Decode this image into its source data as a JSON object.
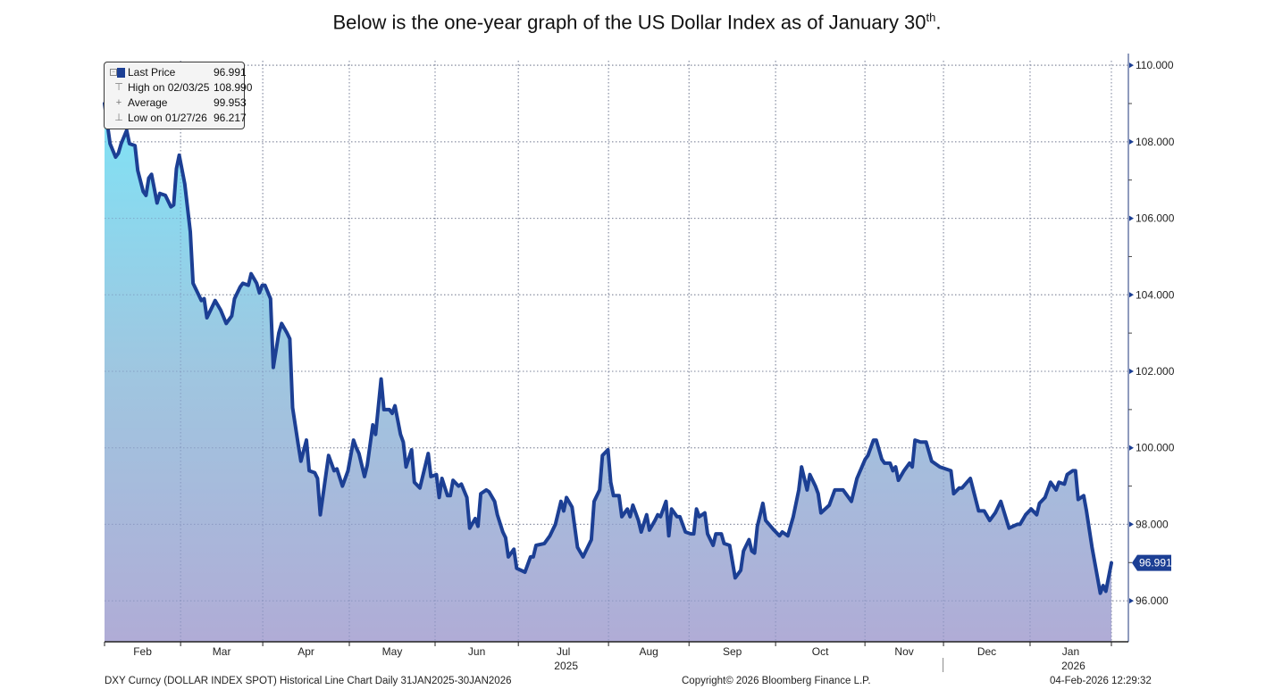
{
  "header": {
    "title": "Below is the one-year graph of the US Dollar Index as of January 30",
    "title_sup": "th",
    "title_end": "."
  },
  "legend": {
    "rows": [
      {
        "icon": "square-swatch-icon",
        "label": "Last Price",
        "value": "96.991"
      },
      {
        "icon": "high-marker-icon",
        "label": "High on 02/03/25",
        "value": "108.990"
      },
      {
        "icon": "average-marker-icon",
        "label": "Average",
        "value": "99.953"
      },
      {
        "icon": "low-marker-icon",
        "label": "Low on 01/27/26",
        "value": "96.217"
      }
    ]
  },
  "footer": {
    "left": "DXY Curncy (DOLLAR INDEX SPOT) Historical Line Chart Daily 31JAN2025-30JAN2026",
    "center": "Copyright© 2026 Bloomberg Finance L.P.",
    "right": "04-Feb-2026 12:29:32"
  },
  "colors": {
    "line": "#1c3f94",
    "fill_top": "#7fe3f6",
    "fill_mid": "#9fc6e0",
    "fill_bottom": "#b0acd6",
    "grid": "#8a8a8a",
    "axis": "#8f9bbd",
    "last_tag": "#1c3f94"
  },
  "chart_data": {
    "type": "area",
    "title": "DXY Curncy (DOLLAR INDEX SPOT) Historical Line Chart Daily 31JAN2025-30JAN2026",
    "series_name": "Last Price",
    "x_origin": "2025-01-31",
    "x_unit": "days since x_origin",
    "xlim": [
      0,
      370
    ],
    "ylim": [
      94.93,
      110.12
    ],
    "y_ticks": [
      "96.000",
      "98.000",
      "100.000",
      "102.000",
      "104.000",
      "106.000",
      "108.000",
      "110.000"
    ],
    "y_tick_values": [
      96,
      98,
      100,
      102,
      104,
      106,
      108,
      110
    ],
    "y_axis_side": "right",
    "x_month_labels": [
      {
        "label": "Feb",
        "sub": ""
      },
      {
        "label": "Mar",
        "sub": ""
      },
      {
        "label": "Apr",
        "sub": ""
      },
      {
        "label": "May",
        "sub": ""
      },
      {
        "label": "Jun",
        "sub": ""
      },
      {
        "label": "Jul",
        "sub": "2025"
      },
      {
        "label": "Aug",
        "sub": ""
      },
      {
        "label": "Sep",
        "sub": ""
      },
      {
        "label": "Oct",
        "sub": ""
      },
      {
        "label": "Nov",
        "sub": ""
      },
      {
        "label": "Dec",
        "sub": ""
      },
      {
        "label": "Jan",
        "sub": "2026"
      }
    ],
    "grid": true,
    "legend_position": "top-left",
    "last_value": 96.991,
    "last_value_label": "96.991",
    "high": {
      "date": "02/03/25",
      "value": 108.99
    },
    "low": {
      "date": "01/27/26",
      "value": 96.217
    },
    "average": 99.953,
    "points": [
      [
        0,
        109.0
      ],
      [
        2,
        107.95
      ],
      [
        4,
        107.6
      ],
      [
        5,
        107.7
      ],
      [
        6,
        107.95
      ],
      [
        8,
        108.3
      ],
      [
        9,
        107.95
      ],
      [
        11,
        107.9
      ],
      [
        12,
        107.25
      ],
      [
        14,
        106.7
      ],
      [
        15,
        106.6
      ],
      [
        16,
        107.05
      ],
      [
        17,
        107.15
      ],
      [
        19,
        106.4
      ],
      [
        20,
        106.65
      ],
      [
        22,
        106.6
      ],
      [
        24,
        106.3
      ],
      [
        25,
        106.35
      ],
      [
        26,
        107.3
      ],
      [
        27,
        107.65
      ],
      [
        29,
        106.9
      ],
      [
        31,
        105.65
      ],
      [
        32,
        104.3
      ],
      [
        34,
        104.0
      ],
      [
        35,
        103.85
      ],
      [
        36,
        103.9
      ],
      [
        37,
        103.4
      ],
      [
        39,
        103.7
      ],
      [
        40,
        103.85
      ],
      [
        42,
        103.6
      ],
      [
        44,
        103.25
      ],
      [
        46,
        103.45
      ],
      [
        47,
        103.9
      ],
      [
        49,
        104.2
      ],
      [
        50,
        104.3
      ],
      [
        52,
        104.25
      ],
      [
        53,
        104.55
      ],
      [
        55,
        104.3
      ],
      [
        56,
        104.05
      ],
      [
        57,
        104.25
      ],
      [
        58,
        104.25
      ],
      [
        60,
        103.9
      ],
      [
        61,
        102.1
      ],
      [
        63,
        103.0
      ],
      [
        64,
        103.25
      ],
      [
        66,
        103.0
      ],
      [
        67,
        102.85
      ],
      [
        68,
        101.05
      ],
      [
        70,
        100.1
      ],
      [
        71,
        99.65
      ],
      [
        73,
        100.2
      ],
      [
        74,
        99.4
      ],
      [
        76,
        99.35
      ],
      [
        77,
        99.2
      ],
      [
        78,
        98.25
      ],
      [
        81,
        99.8
      ],
      [
        83,
        99.4
      ],
      [
        84,
        99.45
      ],
      [
        86,
        99.0
      ],
      [
        88,
        99.4
      ],
      [
        90,
        100.2
      ],
      [
        91,
        100.0
      ],
      [
        92,
        99.85
      ],
      [
        94,
        99.25
      ],
      [
        95,
        99.55
      ],
      [
        97,
        100.6
      ],
      [
        98,
        100.35
      ],
      [
        100,
        101.8
      ],
      [
        101,
        101.0
      ],
      [
        103,
        101.0
      ],
      [
        104,
        100.9
      ],
      [
        105,
        101.1
      ],
      [
        107,
        100.35
      ],
      [
        108,
        100.15
      ],
      [
        109,
        99.5
      ],
      [
        111,
        99.95
      ],
      [
        112,
        99.1
      ],
      [
        114,
        98.95
      ],
      [
        117,
        99.85
      ],
      [
        118,
        99.25
      ],
      [
        120,
        99.3
      ],
      [
        121,
        98.7
      ],
      [
        122,
        99.2
      ],
      [
        124,
        98.75
      ],
      [
        125,
        98.75
      ],
      [
        126,
        99.15
      ],
      [
        128,
        99.0
      ],
      [
        129,
        99.05
      ],
      [
        131,
        98.7
      ],
      [
        132,
        97.9
      ],
      [
        134,
        98.15
      ],
      [
        135,
        97.95
      ],
      [
        136,
        98.8
      ],
      [
        138,
        98.9
      ],
      [
        139,
        98.85
      ],
      [
        141,
        98.6
      ],
      [
        142,
        98.25
      ],
      [
        144,
        97.8
      ],
      [
        145,
        97.65
      ],
      [
        146,
        97.15
      ],
      [
        148,
        97.35
      ],
      [
        149,
        96.85
      ],
      [
        152,
        96.75
      ],
      [
        154,
        97.15
      ],
      [
        155,
        97.15
      ],
      [
        156,
        97.45
      ],
      [
        159,
        97.5
      ],
      [
        161,
        97.7
      ],
      [
        163,
        98.0
      ],
      [
        165,
        98.6
      ],
      [
        166,
        98.35
      ],
      [
        167,
        98.7
      ],
      [
        169,
        98.45
      ],
      [
        171,
        97.4
      ],
      [
        173,
        97.15
      ],
      [
        176,
        97.6
      ],
      [
        177,
        98.6
      ],
      [
        179,
        98.9
      ],
      [
        180,
        99.8
      ],
      [
        182,
        99.95
      ],
      [
        183,
        99.1
      ],
      [
        184,
        98.75
      ],
      [
        186,
        98.75
      ],
      [
        187,
        98.2
      ],
      [
        189,
        98.4
      ],
      [
        190,
        98.2
      ],
      [
        191,
        98.5
      ],
      [
        193,
        98.1
      ],
      [
        194,
        97.8
      ],
      [
        196,
        98.25
      ],
      [
        197,
        97.85
      ],
      [
        199,
        98.1
      ],
      [
        200,
        98.25
      ],
      [
        201,
        98.2
      ],
      [
        203,
        98.6
      ],
      [
        204,
        97.7
      ],
      [
        205,
        98.4
      ],
      [
        207,
        98.2
      ],
      [
        208,
        98.2
      ],
      [
        210,
        97.8
      ],
      [
        212,
        97.75
      ],
      [
        213,
        97.75
      ],
      [
        214,
        98.4
      ],
      [
        215,
        98.2
      ],
      [
        217,
        98.3
      ],
      [
        218,
        97.75
      ],
      [
        220,
        97.45
      ],
      [
        221,
        97.75
      ],
      [
        223,
        97.75
      ],
      [
        224,
        97.5
      ],
      [
        226,
        97.45
      ],
      [
        228,
        96.6
      ],
      [
        230,
        96.8
      ],
      [
        231,
        97.3
      ],
      [
        233,
        97.6
      ],
      [
        234,
        97.3
      ],
      [
        235,
        97.25
      ],
      [
        236,
        97.95
      ],
      [
        238,
        98.55
      ],
      [
        239,
        98.1
      ],
      [
        242,
        97.85
      ],
      [
        244,
        97.7
      ],
      [
        245,
        97.8
      ],
      [
        247,
        97.7
      ],
      [
        249,
        98.2
      ],
      [
        251,
        98.9
      ],
      [
        252,
        99.5
      ],
      [
        254,
        98.9
      ],
      [
        255,
        99.3
      ],
      [
        257,
        99.0
      ],
      [
        258,
        98.8
      ],
      [
        259,
        98.3
      ],
      [
        262,
        98.5
      ],
      [
        264,
        98.9
      ],
      [
        265,
        98.9
      ],
      [
        267,
        98.9
      ],
      [
        270,
        98.6
      ],
      [
        272,
        99.2
      ],
      [
        275,
        99.7
      ],
      [
        276,
        99.8
      ],
      [
        278,
        100.2
      ],
      [
        279,
        100.2
      ],
      [
        281,
        99.7
      ],
      [
        282,
        99.6
      ],
      [
        284,
        99.6
      ],
      [
        285,
        99.4
      ],
      [
        286,
        99.5
      ],
      [
        287,
        99.15
      ],
      [
        289,
        99.4
      ],
      [
        291,
        99.6
      ],
      [
        292,
        99.5
      ],
      [
        293,
        100.2
      ],
      [
        295,
        100.15
      ],
      [
        297,
        100.15
      ],
      [
        299,
        99.65
      ],
      [
        302,
        99.5
      ],
      [
        306,
        99.4
      ],
      [
        307,
        98.8
      ],
      [
        309,
        98.95
      ],
      [
        310,
        98.95
      ],
      [
        313,
        99.2
      ],
      [
        316,
        98.35
      ],
      [
        318,
        98.35
      ],
      [
        320,
        98.1
      ],
      [
        322,
        98.3
      ],
      [
        324,
        98.6
      ],
      [
        327,
        97.9
      ],
      [
        330,
        98.0
      ],
      [
        331,
        98.0
      ],
      [
        333,
        98.25
      ],
      [
        335,
        98.4
      ],
      [
        337,
        98.25
      ],
      [
        338,
        98.55
      ],
      [
        340,
        98.7
      ],
      [
        342,
        99.1
      ],
      [
        344,
        98.9
      ],
      [
        345,
        99.1
      ],
      [
        347,
        99.05
      ],
      [
        348,
        99.3
      ],
      [
        350,
        99.4
      ],
      [
        351,
        99.4
      ],
      [
        352,
        98.65
      ],
      [
        354,
        98.75
      ],
      [
        355,
        98.35
      ],
      [
        357,
        97.4
      ],
      [
        360,
        96.2
      ],
      [
        361,
        96.4
      ],
      [
        362,
        96.25
      ],
      [
        364,
        96.991
      ]
    ]
  }
}
